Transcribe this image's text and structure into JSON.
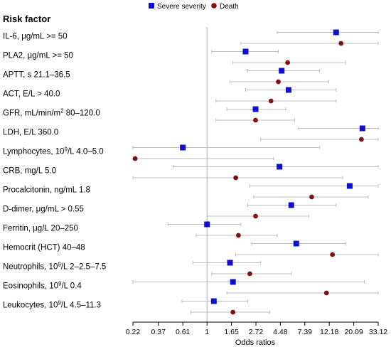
{
  "chart_data": {
    "type": "scatter",
    "subtype": "forest-plot",
    "heading": "Risk factor",
    "xlabel": "Odds ratios",
    "x_scale": "log",
    "xlim": [
      0.22,
      33.12
    ],
    "x_ticks": [
      "0.22",
      "0.37",
      "0.61",
      "1",
      "1.65",
      "2.72",
      "4.48",
      "7.39",
      "12.18",
      "20.09",
      "33.12"
    ],
    "reference_line": 1,
    "legend_position": "top",
    "colors": {
      "severe": "#1010cc",
      "death": "#7a1414",
      "ci": "#bdbdbd",
      "ref": "#aaaaaa"
    },
    "series": [
      {
        "name": "Severe severity",
        "marker": "square"
      },
      {
        "name": "Death",
        "marker": "circle"
      }
    ],
    "risk_factors": [
      {
        "label": "IL-6, μg/mL >= 50",
        "sup": "",
        "post": "",
        "severe": {
          "or": 14.0,
          "ci": [
            4.2,
            33.1
          ]
        },
        "death": {
          "or": 15.5,
          "ci": [
            2.0,
            33.1
          ]
        }
      },
      {
        "label": "PLA2, μg/mL >= 50",
        "sup": "",
        "post": "",
        "severe": {
          "or": 2.2,
          "ci": [
            1.1,
            4.3
          ]
        },
        "death": {
          "or": 5.2,
          "ci": [
            1.7,
            17.0
          ]
        }
      },
      {
        "label": "APTT, s  21.1–36.5",
        "sup": "",
        "post": "",
        "severe": {
          "or": 4.6,
          "ci": [
            2.3,
            10.0
          ]
        },
        "death": {
          "or": 4.3,
          "ci": [
            1.6,
            12.0
          ]
        }
      },
      {
        "label": "ACT, E/L > 40.0",
        "sup": "",
        "post": "",
        "severe": {
          "or": 5.3,
          "ci": [
            2.2,
            14.0
          ]
        },
        "death": {
          "or": 3.7,
          "ci": [
            1.2,
            14.0
          ]
        }
      },
      {
        "label": "GFR, mL/min/m",
        "sup": "2",
        "post": " 80–120.0",
        "severe": {
          "or": 2.7,
          "ci": [
            1.5,
            5.0
          ]
        },
        "death": {
          "or": 2.7,
          "ci": [
            1.2,
            6.0
          ]
        }
      },
      {
        "label": "LDH, E/L 360.0",
        "sup": "",
        "post": "",
        "severe": {
          "or": 24.0,
          "ci": [
            6.5,
            33.1
          ]
        },
        "death": {
          "or": 23.5,
          "ci": [
            3.0,
            33.1
          ]
        }
      },
      {
        "label": "Lymphocytes, 10",
        "sup": "9",
        "post": "/L 4.0–5.0",
        "severe": {
          "or": 0.61,
          "ci": [
            0.22,
            10.0
          ]
        },
        "death": {
          "or": 0.23,
          "ci": [
            0.22,
            3.9
          ]
        }
      },
      {
        "label": "CRB, mg/L 5.0",
        "sup": "",
        "post": "",
        "severe": {
          "or": 4.4,
          "ci": [
            0.5,
            33.1
          ]
        },
        "death": {
          "or": 1.8,
          "ci": [
            0.22,
            16.0
          ]
        }
      },
      {
        "label": "Procalcitonin, ng/mL 1.8",
        "sup": "",
        "post": "",
        "severe": {
          "or": 18.5,
          "ci": [
            2.4,
            33.1
          ]
        },
        "death": {
          "or": 8.5,
          "ci": [
            2.6,
            27.0
          ]
        }
      },
      {
        "label": "D-dimer, μg/mL > 0.55",
        "sup": "",
        "post": "",
        "severe": {
          "or": 5.6,
          "ci": [
            2.3,
            14.0
          ]
        },
        "death": {
          "or": 2.7,
          "ci": [
            1.0,
            8.0
          ]
        }
      },
      {
        "label": "Ferritin, μg/L 20–250",
        "sup": "",
        "post": "",
        "severe": {
          "or": 1.0,
          "ci": [
            0.45,
            2.0
          ]
        },
        "death": {
          "or": 1.9,
          "ci": [
            0.8,
            4.2
          ]
        }
      },
      {
        "label": "Hemocrit (HCT) 40–48",
        "sup": "",
        "post": "",
        "severe": {
          "or": 6.2,
          "ci": [
            2.5,
            17.0
          ]
        },
        "death": {
          "or": 13.0,
          "ci": [
            1.8,
            33.1
          ]
        }
      },
      {
        "label": "Neutrophils, 10",
        "sup": "9",
        "post": "/L 2–2.5–7.5",
        "severe": {
          "or": 1.6,
          "ci": [
            0.75,
            3.0
          ]
        },
        "death": {
          "or": 2.4,
          "ci": [
            1.1,
            5.6
          ]
        }
      },
      {
        "label": "Eosinophils, 10",
        "sup": "9",
        "post": "/L 0.4",
        "severe": {
          "or": 1.7,
          "ci": [
            0.22,
            25.0
          ]
        },
        "death": {
          "or": 11.5,
          "ci": [
            1.5,
            33.1
          ]
        }
      },
      {
        "label": "Leukocytes, 10",
        "sup": "9",
        "post": "/L 4.5–11.3",
        "severe": {
          "or": 1.15,
          "ci": [
            0.6,
            2.3
          ]
        },
        "death": {
          "or": 1.7,
          "ci": [
            0.72,
            3.6
          ]
        }
      }
    ]
  }
}
